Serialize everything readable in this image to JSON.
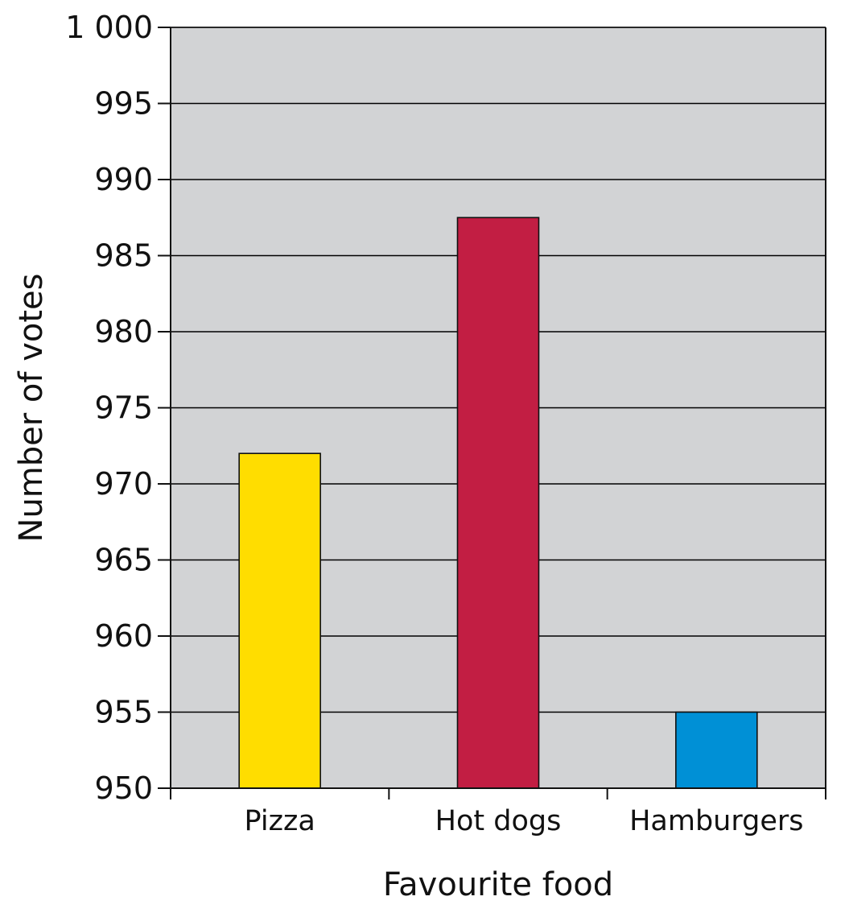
{
  "chart_data": {
    "type": "bar",
    "categories": [
      "Pizza",
      "Hot dogs",
      "Hamburgers"
    ],
    "values": [
      972,
      987.5,
      955
    ],
    "bar_colors": [
      "#FFDD00",
      "#C21E43",
      "#0090D6"
    ],
    "ylim": [
      950,
      1000
    ],
    "yticks": [
      950,
      955,
      960,
      965,
      970,
      975,
      980,
      985,
      990,
      995,
      1000
    ],
    "ytick_labels": [
      "950",
      "955",
      "960",
      "965",
      "970",
      "975",
      "980",
      "985",
      "990",
      "995",
      "1 000"
    ],
    "xlabel": "Favourite food",
    "ylabel": "Number of votes",
    "grid": true,
    "plot_background": "#D2D3D5",
    "gridline_color": "#000000"
  }
}
